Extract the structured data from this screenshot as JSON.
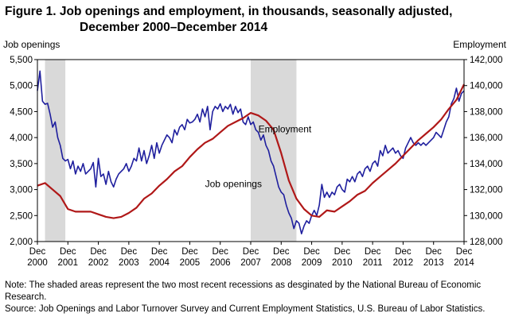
{
  "title_line1": "Figure 1. Job openings and employment, in thousands, seasonally adjusted,",
  "title_line2": "December 2000–December 2014",
  "note": "Note: The shaded areas represent the two most recent recessions as desginated by the National Bureau of Economic Research.",
  "source": "Source: Job Openings and Labor Turnover Survey and Current Employment Statistics, U.S. Bureau of Labor Statistics.",
  "colors": {
    "job_openings": "#1f1f9e",
    "employment": "#b01818",
    "recession": "#d9d9d9",
    "axis": "#000000"
  },
  "chart_data": {
    "type": "line",
    "x_range": [
      "2000-12",
      "2014-12"
    ],
    "x_ticks": [
      {
        "line1": "Dec",
        "line2": "2000"
      },
      {
        "line1": "Dec",
        "line2": "2001"
      },
      {
        "line1": "Dec",
        "line2": "2002"
      },
      {
        "line1": "Dec",
        "line2": "2003"
      },
      {
        "line1": "Dec",
        "line2": "2004"
      },
      {
        "line1": "Dec",
        "line2": "2005"
      },
      {
        "line1": "Dec",
        "line2": "2006"
      },
      {
        "line1": "Dec",
        "line2": "2007"
      },
      {
        "line1": "Dec",
        "line2": "2008"
      },
      {
        "line1": "Dec",
        "line2": "2009"
      },
      {
        "line1": "Dec",
        "line2": "2010"
      },
      {
        "line1": "Dec",
        "line2": "2011"
      },
      {
        "line1": "Dec",
        "line2": "2012"
      },
      {
        "line1": "Dec",
        "line2": "2013"
      },
      {
        "line1": "Dec",
        "line2": "2014"
      }
    ],
    "y_left": {
      "label": "Job openings",
      "range": [
        2000,
        5500
      ],
      "ticks": [
        "2,000",
        "2,500",
        "3,000",
        "3,500",
        "4,000",
        "4,500",
        "5,000",
        "5,500"
      ]
    },
    "y_right": {
      "label": "Employment",
      "range": [
        128000,
        142000
      ],
      "ticks": [
        "128,000",
        "130,000",
        "132,000",
        "134,000",
        "136,000",
        "138,000",
        "140,000",
        "142,000"
      ]
    },
    "recessions": [
      [
        "2001-03",
        "2001-11"
      ],
      [
        "2007-12",
        "2009-06"
      ]
    ],
    "series": [
      {
        "name": "Job openings",
        "axis": "left",
        "points": [
          [
            "2000-12",
            4900
          ],
          [
            "2001-01",
            5280
          ],
          [
            "2001-02",
            4700
          ],
          [
            "2001-03",
            4640
          ],
          [
            "2001-04",
            4660
          ],
          [
            "2001-05",
            4450
          ],
          [
            "2001-06",
            4200
          ],
          [
            "2001-07",
            4300
          ],
          [
            "2001-08",
            4000
          ],
          [
            "2001-09",
            3850
          ],
          [
            "2001-10",
            3600
          ],
          [
            "2001-11",
            3550
          ],
          [
            "2001-12",
            3580
          ],
          [
            "2002-01",
            3400
          ],
          [
            "2002-02",
            3550
          ],
          [
            "2002-03",
            3300
          ],
          [
            "2002-04",
            3450
          ],
          [
            "2002-05",
            3350
          ],
          [
            "2002-06",
            3500
          ],
          [
            "2002-07",
            3300
          ],
          [
            "2002-08",
            3350
          ],
          [
            "2002-09",
            3400
          ],
          [
            "2002-10",
            3520
          ],
          [
            "2002-11",
            3050
          ],
          [
            "2002-12",
            3600
          ],
          [
            "2003-01",
            3250
          ],
          [
            "2003-02",
            3300
          ],
          [
            "2003-03",
            3100
          ],
          [
            "2003-04",
            3350
          ],
          [
            "2003-05",
            3150
          ],
          [
            "2003-06",
            3050
          ],
          [
            "2003-07",
            3200
          ],
          [
            "2003-08",
            3300
          ],
          [
            "2003-09",
            3350
          ],
          [
            "2003-10",
            3400
          ],
          [
            "2003-11",
            3500
          ],
          [
            "2003-12",
            3350
          ],
          [
            "2004-01",
            3450
          ],
          [
            "2004-02",
            3600
          ],
          [
            "2004-03",
            3550
          ],
          [
            "2004-04",
            3800
          ],
          [
            "2004-05",
            3550
          ],
          [
            "2004-06",
            3750
          ],
          [
            "2004-07",
            3500
          ],
          [
            "2004-08",
            3650
          ],
          [
            "2004-09",
            3850
          ],
          [
            "2004-10",
            3600
          ],
          [
            "2004-11",
            3900
          ],
          [
            "2004-12",
            3700
          ],
          [
            "2005-01",
            3850
          ],
          [
            "2005-02",
            3950
          ],
          [
            "2005-03",
            4050
          ],
          [
            "2005-04",
            4000
          ],
          [
            "2005-05",
            3900
          ],
          [
            "2005-06",
            4150
          ],
          [
            "2005-07",
            4050
          ],
          [
            "2005-08",
            4200
          ],
          [
            "2005-09",
            4250
          ],
          [
            "2005-10",
            4150
          ],
          [
            "2005-11",
            4350
          ],
          [
            "2005-12",
            4280
          ],
          [
            "2006-01",
            4300
          ],
          [
            "2006-02",
            4350
          ],
          [
            "2006-03",
            4450
          ],
          [
            "2006-04",
            4300
          ],
          [
            "2006-05",
            4550
          ],
          [
            "2006-06",
            4400
          ],
          [
            "2006-07",
            4600
          ],
          [
            "2006-08",
            4150
          ],
          [
            "2006-09",
            4500
          ],
          [
            "2006-10",
            4600
          ],
          [
            "2006-11",
            4550
          ],
          [
            "2006-12",
            4650
          ],
          [
            "2007-01",
            4500
          ],
          [
            "2007-02",
            4600
          ],
          [
            "2007-03",
            4550
          ],
          [
            "2007-04",
            4640
          ],
          [
            "2007-05",
            4450
          ],
          [
            "2007-06",
            4600
          ],
          [
            "2007-07",
            4480
          ],
          [
            "2007-08",
            4550
          ],
          [
            "2007-09",
            4300
          ],
          [
            "2007-10",
            4250
          ],
          [
            "2007-11",
            4400
          ],
          [
            "2007-12",
            4250
          ],
          [
            "2008-01",
            4300
          ],
          [
            "2008-02",
            4150
          ],
          [
            "2008-03",
            4100
          ],
          [
            "2008-04",
            3950
          ],
          [
            "2008-05",
            4050
          ],
          [
            "2008-06",
            3850
          ],
          [
            "2008-07",
            3750
          ],
          [
            "2008-08",
            3550
          ],
          [
            "2008-09",
            3450
          ],
          [
            "2008-10",
            3250
          ],
          [
            "2008-11",
            3050
          ],
          [
            "2008-12",
            2950
          ],
          [
            "2009-01",
            2900
          ],
          [
            "2009-02",
            2700
          ],
          [
            "2009-03",
            2550
          ],
          [
            "2009-04",
            2450
          ],
          [
            "2009-05",
            2250
          ],
          [
            "2009-06",
            2400
          ],
          [
            "2009-07",
            2350
          ],
          [
            "2009-08",
            2150
          ],
          [
            "2009-09",
            2300
          ],
          [
            "2009-10",
            2400
          ],
          [
            "2009-11",
            2350
          ],
          [
            "2009-12",
            2500
          ],
          [
            "2010-01",
            2600
          ],
          [
            "2010-02",
            2500
          ],
          [
            "2010-03",
            2700
          ],
          [
            "2010-04",
            3100
          ],
          [
            "2010-05",
            2850
          ],
          [
            "2010-06",
            2950
          ],
          [
            "2010-07",
            2850
          ],
          [
            "2010-08",
            2950
          ],
          [
            "2010-09",
            2900
          ],
          [
            "2010-10",
            3050
          ],
          [
            "2010-11",
            3100
          ],
          [
            "2010-12",
            3000
          ],
          [
            "2011-01",
            2950
          ],
          [
            "2011-02",
            3200
          ],
          [
            "2011-03",
            3150
          ],
          [
            "2011-04",
            3250
          ],
          [
            "2011-05",
            3150
          ],
          [
            "2011-06",
            3300
          ],
          [
            "2011-07",
            3350
          ],
          [
            "2011-08",
            3250
          ],
          [
            "2011-09",
            3400
          ],
          [
            "2011-10",
            3450
          ],
          [
            "2011-11",
            3350
          ],
          [
            "2011-12",
            3500
          ],
          [
            "2012-01",
            3550
          ],
          [
            "2012-02",
            3450
          ],
          [
            "2012-03",
            3750
          ],
          [
            "2012-04",
            3650
          ],
          [
            "2012-05",
            3850
          ],
          [
            "2012-06",
            3700
          ],
          [
            "2012-07",
            3750
          ],
          [
            "2012-08",
            3800
          ],
          [
            "2012-09",
            3700
          ],
          [
            "2012-10",
            3750
          ],
          [
            "2012-11",
            3650
          ],
          [
            "2012-12",
            3600
          ],
          [
            "2013-01",
            3800
          ],
          [
            "2013-02",
            3900
          ],
          [
            "2013-03",
            4000
          ],
          [
            "2013-04",
            3900
          ],
          [
            "2013-05",
            3850
          ],
          [
            "2013-06",
            3900
          ],
          [
            "2013-07",
            3850
          ],
          [
            "2013-08",
            3900
          ],
          [
            "2013-09",
            3850
          ],
          [
            "2013-10",
            3900
          ],
          [
            "2013-11",
            3950
          ],
          [
            "2013-12",
            4000
          ],
          [
            "2014-01",
            4100
          ],
          [
            "2014-02",
            4050
          ],
          [
            "2014-03",
            4000
          ],
          [
            "2014-04",
            4150
          ],
          [
            "2014-05",
            4300
          ],
          [
            "2014-06",
            4400
          ],
          [
            "2014-07",
            4650
          ],
          [
            "2014-08",
            4750
          ],
          [
            "2014-09",
            4950
          ],
          [
            "2014-10",
            4700
          ],
          [
            "2014-11",
            4850
          ],
          [
            "2014-12",
            4900
          ]
        ]
      },
      {
        "name": "Employment",
        "axis": "right",
        "points": [
          [
            "2000-12",
            132300
          ],
          [
            "2001-03",
            132500
          ],
          [
            "2001-06",
            132000
          ],
          [
            "2001-09",
            131500
          ],
          [
            "2001-12",
            130500
          ],
          [
            "2002-03",
            130300
          ],
          [
            "2002-06",
            130300
          ],
          [
            "2002-09",
            130300
          ],
          [
            "2002-12",
            130100
          ],
          [
            "2003-03",
            129900
          ],
          [
            "2003-06",
            129800
          ],
          [
            "2003-09",
            129900
          ],
          [
            "2003-12",
            130200
          ],
          [
            "2004-03",
            130600
          ],
          [
            "2004-06",
            131300
          ],
          [
            "2004-09",
            131700
          ],
          [
            "2004-12",
            132300
          ],
          [
            "2005-03",
            132800
          ],
          [
            "2005-06",
            133400
          ],
          [
            "2005-09",
            133800
          ],
          [
            "2005-12",
            134500
          ],
          [
            "2006-03",
            135100
          ],
          [
            "2006-06",
            135600
          ],
          [
            "2006-09",
            135900
          ],
          [
            "2006-12",
            136400
          ],
          [
            "2007-03",
            136900
          ],
          [
            "2007-06",
            137200
          ],
          [
            "2007-09",
            137500
          ],
          [
            "2007-12",
            137900
          ],
          [
            "2008-03",
            137700
          ],
          [
            "2008-06",
            137300
          ],
          [
            "2008-09",
            136600
          ],
          [
            "2008-12",
            134800
          ],
          [
            "2009-03",
            132700
          ],
          [
            "2009-06",
            131300
          ],
          [
            "2009-09",
            130500
          ],
          [
            "2009-12",
            130000
          ],
          [
            "2010-03",
            129900
          ],
          [
            "2010-06",
            130400
          ],
          [
            "2010-09",
            130300
          ],
          [
            "2010-12",
            130700
          ],
          [
            "2011-03",
            131100
          ],
          [
            "2011-06",
            131600
          ],
          [
            "2011-09",
            131900
          ],
          [
            "2011-12",
            132500
          ],
          [
            "2012-03",
            133000
          ],
          [
            "2012-06",
            133500
          ],
          [
            "2012-09",
            134000
          ],
          [
            "2012-12",
            134600
          ],
          [
            "2013-03",
            135200
          ],
          [
            "2013-06",
            135800
          ],
          [
            "2013-09",
            136300
          ],
          [
            "2013-12",
            136800
          ],
          [
            "2014-03",
            137400
          ],
          [
            "2014-06",
            138200
          ],
          [
            "2014-09",
            138900
          ],
          [
            "2014-12",
            140100
          ]
        ]
      }
    ],
    "annotations": [
      {
        "text": "Employment",
        "at": [
          "2008-03",
          136400
        ],
        "axis": "right"
      },
      {
        "text": "Job openings",
        "at": [
          "2006-06",
          3050
        ],
        "axis": "left"
      }
    ]
  }
}
